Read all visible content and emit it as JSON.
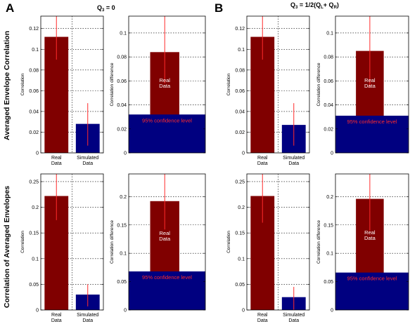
{
  "figure": {
    "panel_letters": [
      "A",
      "B"
    ],
    "column_titles": [
      {
        "main": "Q",
        "sub": "3",
        "rest": " = 0"
      },
      {
        "main": "Q",
        "sub": "3",
        "rest": " = 1/2(Q",
        "sub2": "L",
        "rest2": "+ Q",
        "sub3": "R",
        "rest3": ")"
      }
    ],
    "row_labels": [
      "Averaged Envelope Correlation",
      "Correlation of Averaged Envelopes"
    ]
  },
  "colors": {
    "real": "#800000",
    "simulated": "#000080",
    "errorbar": "#ff2a2a",
    "inner_text": "#ffffff",
    "conf_text": "#ff2a2a"
  },
  "chart_data": [
    {
      "id": "A1-bars",
      "type": "bar",
      "ylabel": "Correlation",
      "ylim": [
        0,
        0.132
      ],
      "yticks": [
        0,
        0.02,
        0.04,
        0.06,
        0.08,
        0.1,
        0.12
      ],
      "ytick_labels": [
        "0",
        "0.02",
        "0.04",
        "0.06",
        "0.08",
        "0.1",
        "0.12"
      ],
      "categories": [
        [
          "Real",
          "Data"
        ],
        [
          "Simulated",
          "Data"
        ]
      ],
      "values": [
        0.112,
        0.028
      ],
      "errors": [
        [
          0.09,
          0.132
        ],
        [
          0.007,
          0.048
        ]
      ],
      "grid": true
    },
    {
      "id": "A1-diff",
      "type": "bar",
      "ylabel": "Correlation difference",
      "ylim": [
        0,
        0.114
      ],
      "yticks": [
        0,
        0.02,
        0.04,
        0.06,
        0.08,
        0.1
      ],
      "ytick_labels": [
        "0",
        "0.02",
        "0.04",
        "0.06",
        "0.08",
        "0.1"
      ],
      "value": 0.084,
      "error": [
        0.058,
        0.114
      ],
      "bar_label": [
        "Real",
        "Data"
      ],
      "confidence_level": 0.032,
      "confidence_label": "95% confidence level",
      "grid": true
    },
    {
      "id": "B1-bars",
      "type": "bar",
      "ylabel": "Correlation",
      "ylim": [
        0,
        0.132
      ],
      "yticks": [
        0,
        0.02,
        0.04,
        0.06,
        0.08,
        0.1,
        0.12
      ],
      "ytick_labels": [
        "0",
        "0.02",
        "0.04",
        "0.06",
        "0.08",
        "0.1",
        "0.12"
      ],
      "categories": [
        [
          "Real",
          "Data"
        ],
        [
          "Simulated",
          "Data"
        ]
      ],
      "values": [
        0.112,
        0.027
      ],
      "errors": [
        [
          0.09,
          0.132
        ],
        [
          0.007,
          0.048
        ]
      ],
      "grid": true
    },
    {
      "id": "B1-diff",
      "type": "bar",
      "ylabel": "Correlation difference",
      "ylim": [
        0,
        0.114
      ],
      "yticks": [
        0,
        0.02,
        0.04,
        0.06,
        0.08,
        0.1
      ],
      "ytick_labels": [
        "0",
        "0.02",
        "0.04",
        "0.06",
        "0.08",
        "0.1"
      ],
      "value": 0.085,
      "error": [
        0.055,
        0.114
      ],
      "bar_label": [
        "Real",
        "Data"
      ],
      "confidence_level": 0.031,
      "confidence_label": "95% confidence level",
      "grid": true
    },
    {
      "id": "A2-bars",
      "type": "bar",
      "ylabel": "Correlation",
      "ylim": [
        0,
        0.265
      ],
      "yticks": [
        0,
        0.05,
        0.1,
        0.15,
        0.2,
        0.25
      ],
      "ytick_labels": [
        "0",
        "0.05",
        "0.1",
        "0.15",
        "0.2",
        "0.25"
      ],
      "categories": [
        [
          "Real",
          "Data"
        ],
        [
          "Simulated",
          "Data"
        ]
      ],
      "values": [
        0.222,
        0.03
      ],
      "errors": [
        [
          0.175,
          0.265
        ],
        [
          0.007,
          0.05
        ]
      ],
      "grid": true
    },
    {
      "id": "A2-diff",
      "type": "bar",
      "ylabel": "Correlation difference",
      "ylim": [
        0,
        0.24
      ],
      "yticks": [
        0,
        0.05,
        0.1,
        0.15,
        0.2
      ],
      "ytick_labels": [
        "0",
        "0.05",
        "0.1",
        "0.15",
        "0.2"
      ],
      "value": 0.192,
      "error": [
        0.142,
        0.24
      ],
      "bar_label": [
        "Real",
        "Data"
      ],
      "confidence_level": 0.068,
      "confidence_label": "95% confidence level",
      "grid": true
    },
    {
      "id": "B2-bars",
      "type": "bar",
      "ylabel": "Correlation",
      "ylim": [
        0,
        0.265
      ],
      "yticks": [
        0,
        0.05,
        0.1,
        0.15,
        0.2,
        0.25
      ],
      "ytick_labels": [
        "0",
        "0.05",
        "0.1",
        "0.15",
        "0.2",
        "0.25"
      ],
      "categories": [
        [
          "Real",
          "Data"
        ],
        [
          "Simulated",
          "Data"
        ]
      ],
      "values": [
        0.222,
        0.025
      ],
      "errors": [
        [
          0.17,
          0.265
        ],
        [
          0.0,
          0.045
        ]
      ],
      "grid": true
    },
    {
      "id": "B2-diff",
      "type": "bar",
      "ylabel": "Correlation difference",
      "ylim": [
        0,
        0.24
      ],
      "yticks": [
        0,
        0.05,
        0.1,
        0.15,
        0.2
      ],
      "ytick_labels": [
        "0",
        "0.05",
        "0.1",
        "0.15",
        "0.2"
      ],
      "value": 0.196,
      "error": [
        0.14,
        0.24
      ],
      "bar_label": [
        "Real",
        "Data"
      ],
      "confidence_level": 0.066,
      "confidence_label": "95% confidence level",
      "grid": true
    }
  ]
}
